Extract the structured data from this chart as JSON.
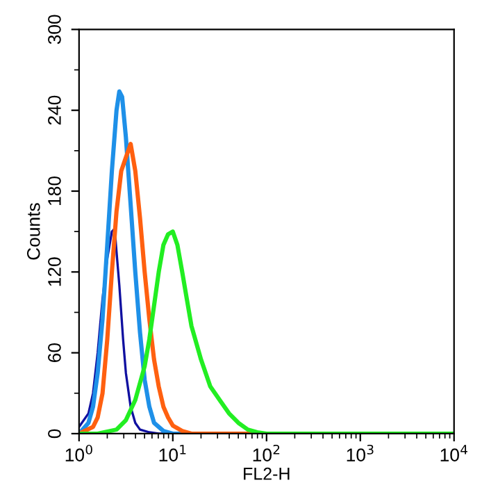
{
  "chart_data": {
    "type": "line",
    "xlabel": "FL2-H",
    "ylabel": "Counts",
    "log": "x",
    "xlim": [
      1,
      10000
    ],
    "ylim": [
      0,
      300
    ],
    "xticks": [
      {
        "value": 1,
        "label": "10$^{0}$"
      },
      {
        "value": 10,
        "label": "10$^{1}$"
      },
      {
        "value": 100,
        "label": "10$^{2}$"
      },
      {
        "value": 1000,
        "label": "10$^{3}$"
      },
      {
        "value": 10000,
        "label": "10$^{4}$"
      }
    ],
    "yticks": [
      0,
      60,
      120,
      180,
      240,
      300
    ],
    "grid": false,
    "legend": false,
    "marker": "none",
    "line_style": "solid",
    "series": [
      {
        "color": "#1010a0",
        "x": [
          1,
          1.26,
          1.41,
          1.58,
          1.78,
          2.0,
          2.24,
          2.4,
          2.51,
          2.69,
          2.95,
          3.16,
          3.55,
          3.98,
          4.47,
          5.62,
          7.08,
          10000
        ],
        "values": [
          5,
          15,
          30,
          60,
          100,
          130,
          150,
          152,
          135,
          110,
          70,
          45,
          20,
          8,
          3,
          1,
          0,
          0
        ]
      },
      {
        "color": "#1e90e8",
        "x": [
          1,
          1.26,
          1.41,
          1.58,
          1.78,
          2.0,
          2.24,
          2.51,
          2.69,
          2.88,
          3.16,
          3.55,
          3.98,
          4.47,
          5.01,
          5.62,
          6.31,
          7.94,
          10,
          10000
        ],
        "values": [
          0,
          8,
          20,
          45,
          85,
          140,
          195,
          240,
          254,
          250,
          220,
          170,
          120,
          75,
          40,
          20,
          8,
          2,
          0,
          0
        ]
      },
      {
        "color": "#ff6010",
        "x": [
          1,
          1.41,
          1.58,
          1.78,
          2.0,
          2.24,
          2.51,
          2.82,
          3.16,
          3.55,
          3.98,
          4.47,
          5.01,
          5.62,
          6.31,
          7.08,
          7.94,
          8.91,
          10,
          12.6,
          15.8,
          10000
        ],
        "values": [
          0,
          5,
          12,
          30,
          70,
          120,
          165,
          195,
          205,
          215,
          195,
          160,
          120,
          85,
          55,
          35,
          20,
          12,
          6,
          2,
          0,
          0
        ]
      },
      {
        "color": "#22ee22",
        "x": [
          1,
          1.58,
          2.51,
          3.16,
          3.98,
          5.01,
          5.62,
          6.31,
          7.08,
          7.94,
          8.91,
          10,
          11.2,
          12.6,
          14.1,
          15.8,
          20,
          25.1,
          31.6,
          39.8,
          50.1,
          63.1,
          79.4,
          100,
          10000
        ],
        "values": [
          0,
          0,
          3,
          10,
          25,
          50,
          70,
          95,
          120,
          140,
          148,
          150,
          140,
          120,
          100,
          80,
          55,
          35,
          25,
          15,
          8,
          3,
          1,
          0,
          0
        ]
      }
    ]
  }
}
